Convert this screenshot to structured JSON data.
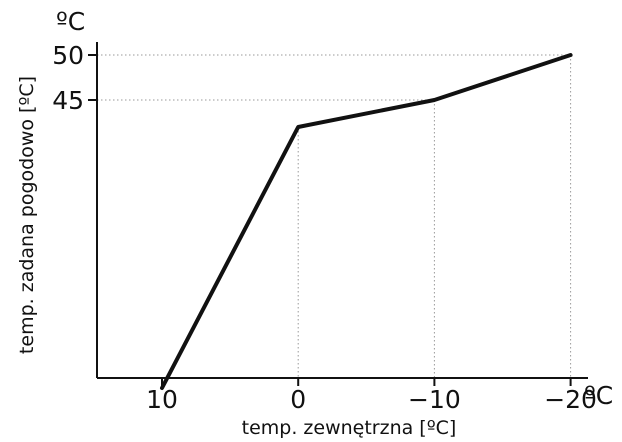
{
  "chart_data": {
    "type": "line",
    "title": "",
    "xlabel": "temp. zewnętrzna [ºC]",
    "ylabel": "temp. zadana pogodowo [ºC]",
    "x_unit": "ºC",
    "y_unit": "ºC",
    "x_ticks": [
      10,
      0,
      -10,
      -20
    ],
    "x_tick_labels": [
      "10",
      "0",
      "−10",
      "−20"
    ],
    "y_ticks": [
      50,
      45
    ],
    "y_tick_labels": [
      "50",
      "45"
    ],
    "x_direction": "reversed",
    "xlim": [
      15,
      -20
    ],
    "ylim": [
      13,
      50
    ],
    "grid": "dotted reference lines at marked points",
    "series": [
      {
        "x": [
          10,
          0,
          -10,
          -20
        ],
        "y": [
          13,
          42,
          45,
          50
        ]
      }
    ],
    "line_color": "#111111"
  }
}
